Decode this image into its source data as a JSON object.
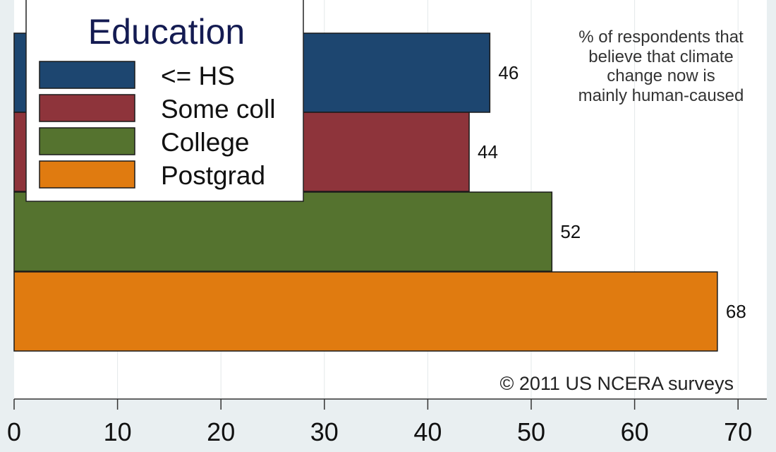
{
  "chart_data": {
    "type": "bar",
    "orientation": "horizontal",
    "legend_title": "Education",
    "categories": [
      "<= HS",
      "Some coll",
      "College",
      "Postgrad"
    ],
    "values": [
      46,
      44,
      52,
      68
    ],
    "value_labels": [
      "46",
      "44",
      "52",
      "68"
    ],
    "colors": [
      "#1d4670",
      "#8e343b",
      "#55732f",
      "#e07b10"
    ],
    "annotation": [
      "% of respondents that",
      "believe that climate",
      "change now is",
      "mainly human-caused"
    ],
    "source": "© 2011 US NCERA surveys",
    "xlim": [
      0,
      73
    ],
    "xticks": [
      0,
      10,
      20,
      30,
      40,
      50,
      60,
      70
    ],
    "xtick_labels": [
      "0",
      "10",
      "20",
      "30",
      "40",
      "50",
      "60",
      "70"
    ],
    "grid": true,
    "legend_placement": "top-left"
  }
}
